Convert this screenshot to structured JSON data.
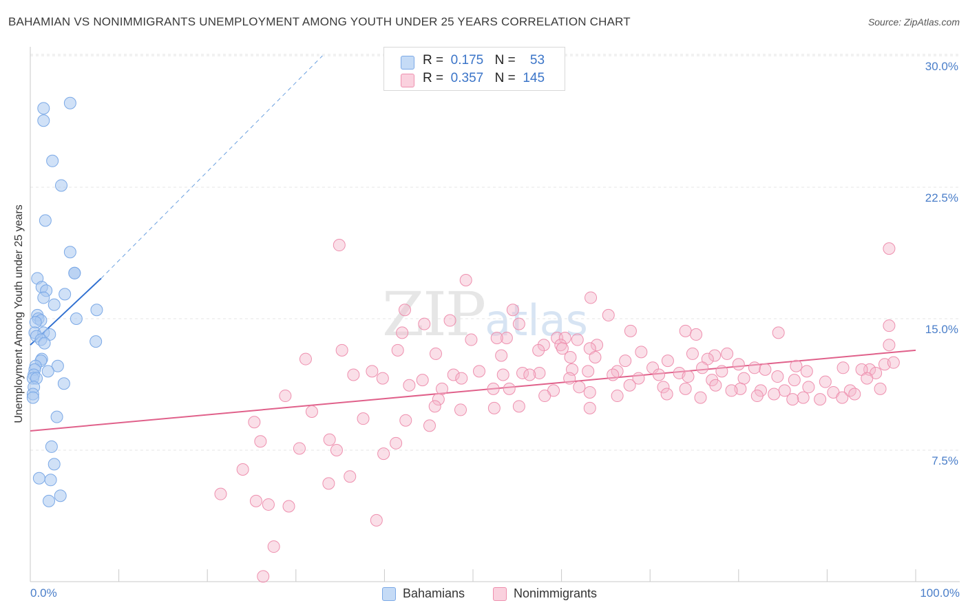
{
  "title": "BAHAMIAN VS NONIMMIGRANTS UNEMPLOYMENT AMONG YOUTH UNDER 25 YEARS CORRELATION CHART",
  "source": "Source: ZipAtlas.com",
  "watermark": {
    "zip": "ZIP",
    "atlas": "atlas"
  },
  "stats": [
    {
      "r_label": "R =",
      "r": "0.175",
      "n_label": "N =",
      "n": "53",
      "color": "#a9c8f0"
    },
    {
      "r_label": "R =",
      "r": "0.357",
      "n_label": "N =",
      "n": "145",
      "color": "#f5b8cb"
    }
  ],
  "legend": [
    {
      "label": "Bahamians",
      "color": "#a9c8f0"
    },
    {
      "label": "Nonimmigrants",
      "color": "#f5b8cb"
    }
  ],
  "chart_data": {
    "type": "scatter",
    "title": "BAHAMIAN VS NONIMMIGRANTS UNEMPLOYMENT AMONG YOUTH UNDER 25 YEARS CORRELATION CHART",
    "xlabel": "",
    "ylabel": "Unemployment Among Youth under 25 years",
    "xlim": [
      0,
      100
    ],
    "ylim": [
      0,
      31
    ],
    "x_tick_labels": [
      "0.0%",
      "100.0%"
    ],
    "y_ticks": [
      7.5,
      15.0,
      22.5,
      30.0
    ],
    "y_tick_labels": [
      "7.5%",
      "15.0%",
      "22.5%",
      "30.0%"
    ],
    "grid": true,
    "legend_position": "bottom-center",
    "series": [
      {
        "name": "Bahamians",
        "color": "#7aa8e6",
        "trend": {
          "x": [
            0.0,
            8.0
          ],
          "y": [
            13.5,
            17.3
          ],
          "extended_to": [
            33.0,
            30.0
          ]
        },
        "points": [
          [
            1.5,
            27.0
          ],
          [
            4.5,
            27.3
          ],
          [
            1.5,
            26.3
          ],
          [
            2.5,
            24.0
          ],
          [
            3.5,
            22.6
          ],
          [
            1.7,
            20.6
          ],
          [
            4.5,
            18.8
          ],
          [
            5.0,
            17.6
          ],
          [
            5.0,
            17.6
          ],
          [
            0.8,
            17.3
          ],
          [
            1.3,
            16.8
          ],
          [
            1.8,
            16.6
          ],
          [
            1.5,
            16.2
          ],
          [
            3.9,
            16.4
          ],
          [
            2.7,
            15.8
          ],
          [
            7.5,
            15.5
          ],
          [
            0.8,
            15.2
          ],
          [
            0.9,
            15.0
          ],
          [
            5.2,
            15.0
          ],
          [
            1.2,
            14.9
          ],
          [
            0.6,
            14.8
          ],
          [
            0.5,
            14.2
          ],
          [
            1.5,
            14.2
          ],
          [
            2.2,
            14.1
          ],
          [
            0.7,
            14.0
          ],
          [
            1.2,
            13.8
          ],
          [
            1.6,
            13.6
          ],
          [
            7.4,
            13.7
          ],
          [
            1.3,
            12.7
          ],
          [
            1.2,
            12.6
          ],
          [
            0.6,
            12.3
          ],
          [
            3.1,
            12.3
          ],
          [
            0.5,
            12.1
          ],
          [
            2.0,
            12.0
          ],
          [
            0.4,
            11.8
          ],
          [
            0.3,
            11.6
          ],
          [
            0.7,
            11.6
          ],
          [
            3.8,
            11.3
          ],
          [
            0.4,
            11.1
          ],
          [
            0.3,
            10.7
          ],
          [
            0.3,
            10.5
          ],
          [
            3.0,
            9.4
          ],
          [
            2.4,
            7.7
          ],
          [
            2.7,
            6.7
          ],
          [
            1.0,
            5.9
          ],
          [
            2.3,
            5.8
          ],
          [
            3.4,
            4.9
          ],
          [
            2.1,
            4.6
          ]
        ]
      },
      {
        "name": "Nonimmigrants",
        "color": "#ee8fae",
        "trend": {
          "x": [
            0.0,
            100.0
          ],
          "y": [
            8.6,
            13.2
          ]
        },
        "points": [
          [
            34.9,
            19.2
          ],
          [
            97.0,
            19.0
          ],
          [
            49.2,
            17.2
          ],
          [
            63.3,
            16.2
          ],
          [
            42.3,
            15.5
          ],
          [
            54.5,
            15.5
          ],
          [
            65.3,
            15.2
          ],
          [
            47.4,
            14.9
          ],
          [
            55.2,
            14.7
          ],
          [
            97.0,
            14.6
          ],
          [
            44.5,
            14.7
          ],
          [
            42.0,
            14.2
          ],
          [
            49.8,
            13.8
          ],
          [
            53.8,
            13.9
          ],
          [
            67.8,
            14.3
          ],
          [
            74.0,
            14.3
          ],
          [
            75.2,
            14.1
          ],
          [
            59.5,
            13.9
          ],
          [
            60.4,
            13.9
          ],
          [
            52.7,
            13.9
          ],
          [
            58.0,
            13.5
          ],
          [
            59.9,
            13.5
          ],
          [
            61.8,
            13.8
          ],
          [
            64.0,
            13.5
          ],
          [
            57.4,
            13.2
          ],
          [
            60.1,
            13.3
          ],
          [
            63.2,
            13.3
          ],
          [
            69.0,
            13.1
          ],
          [
            74.8,
            13.0
          ],
          [
            77.3,
            12.9
          ],
          [
            78.7,
            13.0
          ],
          [
            84.5,
            14.2
          ],
          [
            97.0,
            13.5
          ],
          [
            35.2,
            13.2
          ],
          [
            31.1,
            12.7
          ],
          [
            41.5,
            13.2
          ],
          [
            45.8,
            13.0
          ],
          [
            53.2,
            12.9
          ],
          [
            61.0,
            12.8
          ],
          [
            63.8,
            12.8
          ],
          [
            67.2,
            12.6
          ],
          [
            72.0,
            12.6
          ],
          [
            76.5,
            12.7
          ],
          [
            80.0,
            12.4
          ],
          [
            81.8,
            12.2
          ],
          [
            86.5,
            12.3
          ],
          [
            91.8,
            12.2
          ],
          [
            96.5,
            12.4
          ],
          [
            97.5,
            12.5
          ],
          [
            94.8,
            12.1
          ],
          [
            38.6,
            12.0
          ],
          [
            47.8,
            11.8
          ],
          [
            50.7,
            12.0
          ],
          [
            55.6,
            11.9
          ],
          [
            57.5,
            11.9
          ],
          [
            61.2,
            12.1
          ],
          [
            63.0,
            12.0
          ],
          [
            66.3,
            12.0
          ],
          [
            70.3,
            12.2
          ],
          [
            73.3,
            11.9
          ],
          [
            75.9,
            12.2
          ],
          [
            78.1,
            12.0
          ],
          [
            83.0,
            12.1
          ],
          [
            87.7,
            12.0
          ],
          [
            93.9,
            12.1
          ],
          [
            95.5,
            11.9
          ],
          [
            36.5,
            11.8
          ],
          [
            39.8,
            11.6
          ],
          [
            44.3,
            11.5
          ],
          [
            48.7,
            11.6
          ],
          [
            53.4,
            11.8
          ],
          [
            56.4,
            11.8
          ],
          [
            60.9,
            11.6
          ],
          [
            65.8,
            11.8
          ],
          [
            68.7,
            11.6
          ],
          [
            71.0,
            11.8
          ],
          [
            74.3,
            11.7
          ],
          [
            77.0,
            11.5
          ],
          [
            80.6,
            11.6
          ],
          [
            84.4,
            11.7
          ],
          [
            86.3,
            11.5
          ],
          [
            89.8,
            11.4
          ],
          [
            94.5,
            11.6
          ],
          [
            42.8,
            11.2
          ],
          [
            46.5,
            11.0
          ],
          [
            52.3,
            11.0
          ],
          [
            54.1,
            11.0
          ],
          [
            59.1,
            10.9
          ],
          [
            62.0,
            11.1
          ],
          [
            67.7,
            11.2
          ],
          [
            71.5,
            11.1
          ],
          [
            74.0,
            11.0
          ],
          [
            77.4,
            11.2
          ],
          [
            80.2,
            11.0
          ],
          [
            82.5,
            10.9
          ],
          [
            85.2,
            10.9
          ],
          [
            87.9,
            11.1
          ],
          [
            90.7,
            10.8
          ],
          [
            92.6,
            10.9
          ],
          [
            96.0,
            11.0
          ],
          [
            28.8,
            10.6
          ],
          [
            46.1,
            10.4
          ],
          [
            58.1,
            10.6
          ],
          [
            63.2,
            10.8
          ],
          [
            66.3,
            10.6
          ],
          [
            71.9,
            10.7
          ],
          [
            75.7,
            10.5
          ],
          [
            79.2,
            10.9
          ],
          [
            82.1,
            10.6
          ],
          [
            84.0,
            10.7
          ],
          [
            87.3,
            10.5
          ],
          [
            89.2,
            10.4
          ],
          [
            91.7,
            10.5
          ],
          [
            93.1,
            10.7
          ],
          [
            86.1,
            10.4
          ],
          [
            31.8,
            9.7
          ],
          [
            45.7,
            10.0
          ],
          [
            48.6,
            9.8
          ],
          [
            52.4,
            9.9
          ],
          [
            55.2,
            10.0
          ],
          [
            63.2,
            9.9
          ],
          [
            25.3,
            9.1
          ],
          [
            37.6,
            9.3
          ],
          [
            42.4,
            9.2
          ],
          [
            45.1,
            8.9
          ],
          [
            33.8,
            8.1
          ],
          [
            26.0,
            8.0
          ],
          [
            41.3,
            7.9
          ],
          [
            34.6,
            7.5
          ],
          [
            30.4,
            7.6
          ],
          [
            39.9,
            7.3
          ],
          [
            24.0,
            6.4
          ],
          [
            36.1,
            6.0
          ],
          [
            33.7,
            5.6
          ],
          [
            21.5,
            5.0
          ],
          [
            25.5,
            4.6
          ],
          [
            26.9,
            4.4
          ],
          [
            29.2,
            4.3
          ],
          [
            39.1,
            3.5
          ],
          [
            27.5,
            2.0
          ],
          [
            26.3,
            0.3
          ]
        ]
      }
    ]
  }
}
